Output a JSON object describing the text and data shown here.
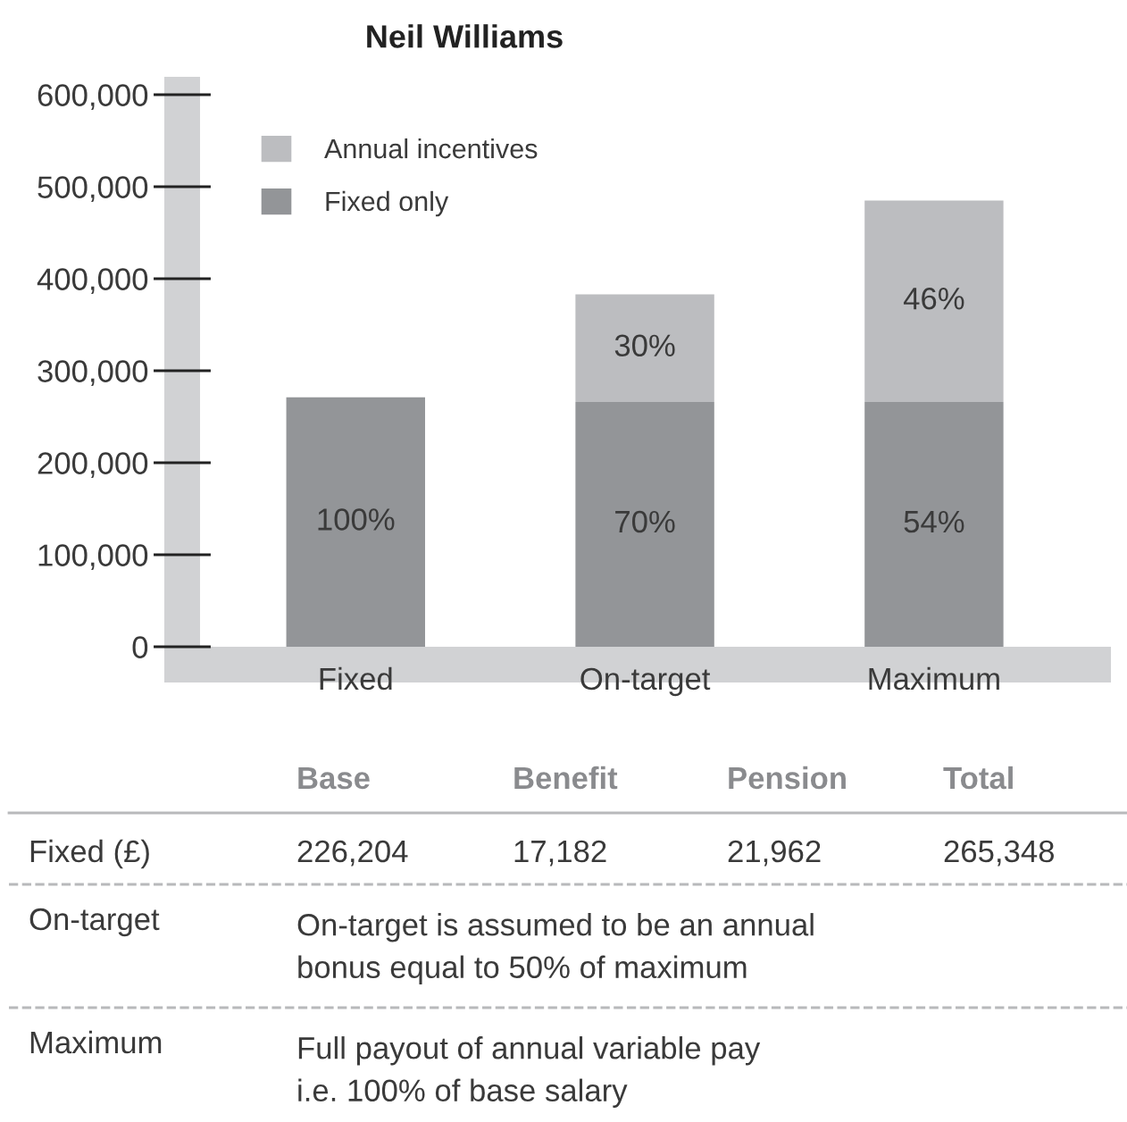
{
  "chart_data": {
    "type": "bar",
    "title": "Neil Williams",
    "stacked": true,
    "categories": [
      "Fixed",
      "On-target",
      "Maximum"
    ],
    "series": [
      {
        "name": "Fixed only",
        "color": "#939598",
        "values": [
          271000,
          266000,
          266000
        ]
      },
      {
        "name": "Annual incentives",
        "color": "#bcbdc0",
        "values": [
          null,
          117000,
          219000
        ]
      }
    ],
    "ylim": [
      0,
      600000
    ],
    "yticks": [
      {
        "value": 0,
        "label": "0"
      },
      {
        "value": 100000,
        "label": "100,000"
      },
      {
        "value": 200000,
        "label": "200,000"
      },
      {
        "value": 300000,
        "label": "300,000"
      },
      {
        "value": 400000,
        "label": "400,000"
      },
      {
        "value": 500000,
        "label": "500,000"
      },
      {
        "value": 600000,
        "label": "600,000"
      }
    ],
    "legend": "top left",
    "grid": false,
    "annotations": [
      "100%",
      "70%",
      "54%",
      "30%",
      "46%",
      "Base",
      "Benefit",
      "Pension",
      "Total",
      "Fixed (£)",
      "226,204",
      "17,182",
      "21,962",
      "265,348",
      "On-target",
      "On-target is assumed to be an annual\nbonus equal to 50% of maximum",
      "Maximum",
      "Full payout of annual variable pay\ni.e. 100% of base salary"
    ]
  }
}
